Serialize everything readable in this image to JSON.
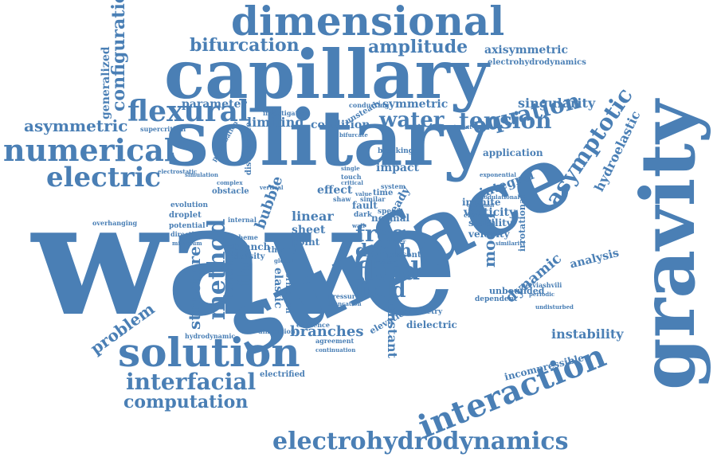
{
  "colors": {
    "word": "#4a7fb5",
    "background": "#ffffff"
  },
  "words": [
    {
      "text": "wave",
      "rotate": "none"
    },
    {
      "text": "solitary",
      "rotate": "none"
    },
    {
      "text": "capillary",
      "rotate": "none"
    },
    {
      "text": "surface",
      "rotate": "tilt-up"
    },
    {
      "text": "gravity",
      "rotate": "vertical"
    },
    {
      "text": "dimensional",
      "rotate": "none"
    },
    {
      "text": "solution",
      "rotate": "none"
    },
    {
      "text": "flexural",
      "rotate": "none"
    },
    {
      "text": "numerical",
      "rotate": "none"
    },
    {
      "text": "electric",
      "rotate": "none"
    },
    {
      "text": "interaction",
      "rotate": "tilt-up"
    },
    {
      "text": "electrohydrodynamics",
      "rotate": "none"
    },
    {
      "text": "interfacial",
      "rotate": "none"
    },
    {
      "text": "computation",
      "rotate": "none"
    },
    {
      "text": "configuration",
      "rotate": "vertical-up"
    },
    {
      "text": "bifurcation",
      "rotate": "none"
    },
    {
      "text": "amplitude",
      "rotate": "none"
    },
    {
      "text": "axisymmetric",
      "rotate": "none"
    },
    {
      "text": "electrohydrodynamics",
      "rotate": "none"
    },
    {
      "text": "equation",
      "rotate": "tilt-up"
    },
    {
      "text": "singularity",
      "rotate": "none"
    },
    {
      "text": "tension",
      "rotate": "none"
    },
    {
      "text": "water",
      "rotate": "none"
    },
    {
      "text": "asymmetric",
      "rotate": "none"
    },
    {
      "text": "asymptotic",
      "rotate": "tilt-up"
    },
    {
      "text": "hydroelastic",
      "rotate": "tilt-up"
    },
    {
      "text": "method",
      "rotate": "vertical-up"
    },
    {
      "text": "structure",
      "rotate": "vertical-up"
    },
    {
      "text": "problem",
      "rotate": "tilt-up"
    },
    {
      "text": "fluid",
      "rotate": "none"
    },
    {
      "text": "free",
      "rotate": "none"
    },
    {
      "text": "field",
      "rotate": "none"
    },
    {
      "text": "depth",
      "rotate": "none"
    },
    {
      "text": "flow",
      "rotate": "vertical-up"
    },
    {
      "text": "branches",
      "rotate": "none"
    },
    {
      "text": "model",
      "rotate": "vertical-up"
    },
    {
      "text": "dynamic",
      "rotate": "tilt-up"
    },
    {
      "text": "instability",
      "rotate": "none"
    },
    {
      "text": "analysis",
      "rotate": "none"
    },
    {
      "text": "incompressible",
      "rotate": "tilt-up"
    },
    {
      "text": "generalized",
      "rotate": "vertical-up"
    },
    {
      "text": "parameter",
      "rotate": "none"
    },
    {
      "text": "limiting",
      "rotate": "none"
    },
    {
      "text": "condition",
      "rotate": "none"
    },
    {
      "text": "symmetric",
      "rotate": "none"
    },
    {
      "text": "integral",
      "rotate": "tilt-up"
    },
    {
      "text": "vorticity",
      "rotate": "none"
    },
    {
      "text": "infinite",
      "rotate": "none"
    },
    {
      "text": "linear",
      "rotate": "none"
    },
    {
      "text": "sheet",
      "rotate": "none"
    },
    {
      "text": "bubble",
      "rotate": "vertical-up"
    },
    {
      "text": "horizontal",
      "rotate": "vertical-up"
    },
    {
      "text": "elastic",
      "rotate": "vertical-down"
    },
    {
      "text": "constant",
      "rotate": "vertical-down"
    },
    {
      "text": "effect",
      "rotate": "none"
    },
    {
      "text": "application",
      "rotate": "none"
    },
    {
      "text": "impact",
      "rotate": "none"
    },
    {
      "text": "normal",
      "rotate": "none"
    },
    {
      "text": "electrified",
      "rotate": "none"
    },
    {
      "text": "steady",
      "rotate": "tilt-up"
    },
    {
      "text": "stability",
      "rotate": "none"
    },
    {
      "text": "velocity",
      "rotate": "none"
    },
    {
      "text": "irrotational",
      "rotate": "vertical-up"
    },
    {
      "text": "unbounded",
      "rotate": "none"
    },
    {
      "text": "dielectric",
      "rotate": "none"
    },
    {
      "text": "supercritical",
      "rotate": "none"
    },
    {
      "text": "evolution",
      "rotate": "none"
    },
    {
      "text": "droplet",
      "rotate": "none"
    },
    {
      "text": "potential",
      "rotate": "none"
    },
    {
      "text": "direction",
      "rotate": "none"
    },
    {
      "text": "overhanging",
      "rotate": "none"
    },
    {
      "text": "hydrodynamic",
      "rotate": "none"
    },
    {
      "text": "dimension",
      "rotate": "none"
    },
    {
      "text": "existence",
      "rotate": "none"
    },
    {
      "text": "agreement",
      "rotate": "none"
    },
    {
      "text": "continuation",
      "rotate": "none"
    },
    {
      "text": "elevation",
      "rotate": "tilt-up"
    },
    {
      "text": "symmetry",
      "rotate": "none"
    },
    {
      "text": "dependent",
      "rotate": "none"
    },
    {
      "text": "formation",
      "rotate": "vertical-down"
    },
    {
      "text": "point",
      "rotate": "none"
    },
    {
      "text": "present",
      "rotate": "none"
    },
    {
      "text": "speed",
      "rotate": "none"
    },
    {
      "text": "theory",
      "rotate": "none"
    },
    {
      "text": "branch",
      "rotate": "none"
    },
    {
      "text": "density",
      "rotate": "none"
    },
    {
      "text": "time",
      "rotate": "none"
    },
    {
      "text": "obstacle",
      "rotate": "none"
    },
    {
      "text": "disturbance",
      "rotate": "vertical-up"
    },
    {
      "text": "investigation",
      "rotate": "none"
    },
    {
      "text": "unsteady",
      "rotate": "tilt-up"
    },
    {
      "text": "conducting",
      "rotate": "none"
    },
    {
      "text": "breaking",
      "rotate": "none"
    },
    {
      "text": "channel",
      "rotate": "none"
    },
    {
      "text": "exponential",
      "rotate": "none"
    },
    {
      "text": "modulational",
      "rotate": "none"
    },
    {
      "text": "fault",
      "rotate": "none"
    },
    {
      "text": "dark",
      "rotate": "none"
    },
    {
      "text": "system",
      "rotate": "none"
    },
    {
      "text": "vertical",
      "rotate": "none"
    },
    {
      "text": "scheme",
      "rotate": "none"
    },
    {
      "text": "internal",
      "rotate": "none"
    },
    {
      "text": "pressure",
      "rotate": "none"
    },
    {
      "text": "truncation",
      "rotate": "none"
    },
    {
      "text": "minimum",
      "rotate": "none"
    },
    {
      "text": "simulation",
      "rotate": "none"
    },
    {
      "text": "experiment",
      "rotate": "none"
    },
    {
      "text": "conformal",
      "rotate": "none"
    },
    {
      "text": "petviashvili",
      "rotate": "none"
    },
    {
      "text": "undisturbed",
      "rotate": "none"
    },
    {
      "text": "periodic",
      "rotate": "none"
    },
    {
      "text": "similarity",
      "rotate": "none"
    },
    {
      "text": "regime",
      "rotate": "none"
    },
    {
      "text": "wall",
      "rotate": "none"
    },
    {
      "text": "order",
      "rotate": "none"
    },
    {
      "text": "shaw",
      "rotate": "none"
    },
    {
      "text": "similar",
      "rotate": "none"
    },
    {
      "text": "bifurcate",
      "rotate": "none"
    },
    {
      "text": "touch",
      "rotate": "none"
    },
    {
      "text": "single",
      "rotate": "none"
    },
    {
      "text": "critical",
      "rotate": "none"
    },
    {
      "text": "electrostatic",
      "rotate": "none"
    },
    {
      "text": "perturbation",
      "rotate": "vertical-up"
    },
    {
      "text": "complex",
      "rotate": "none"
    },
    {
      "text": "global",
      "rotate": "none"
    },
    {
      "text": "value",
      "rotate": "none"
    }
  ]
}
